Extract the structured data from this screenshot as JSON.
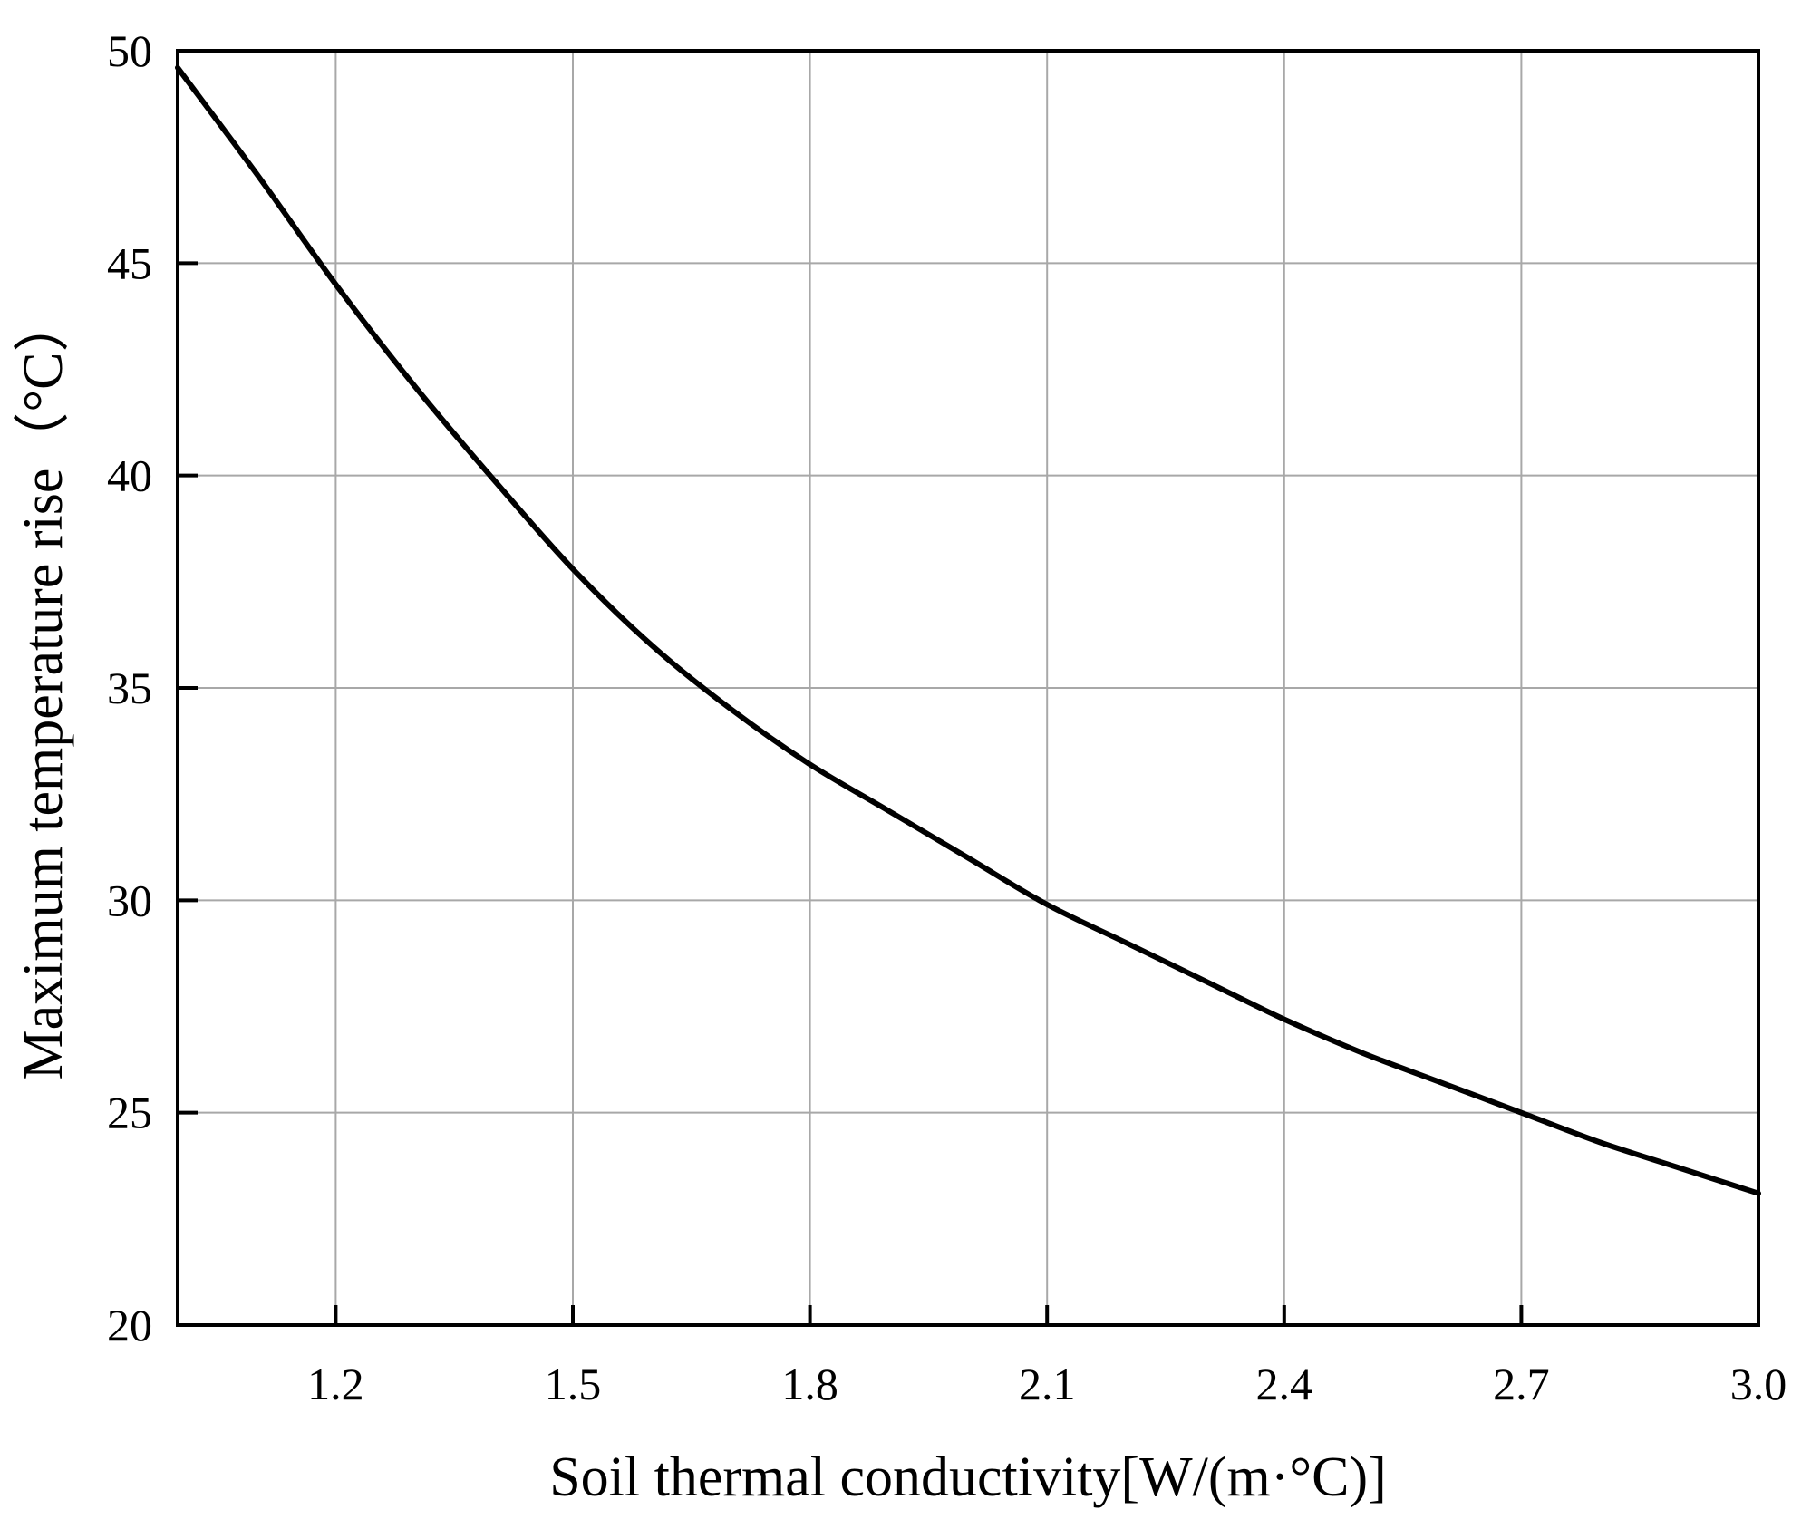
{
  "chart_data": {
    "type": "line",
    "title": "",
    "xlabel": "Soil thermal conductivity[W/(m·°C)]",
    "ylabel": "Maximum temperature rise（°C）",
    "xlim": [
      1.0,
      3.0
    ],
    "ylim": [
      20,
      50
    ],
    "xticks": [
      1.2,
      1.5,
      1.8,
      2.1,
      2.4,
      2.7,
      3.0
    ],
    "xtick_labels": [
      "1.2",
      "1.5",
      "1.8",
      "2.1",
      "2.4",
      "2.7",
      "3.0"
    ],
    "yticks": [
      20,
      25,
      30,
      35,
      40,
      45,
      50
    ],
    "ytick_labels": [
      "20",
      "25",
      "30",
      "35",
      "40",
      "45",
      "50"
    ],
    "grid": true,
    "legend": "none",
    "line_color": "#000000",
    "series": [
      {
        "x": [
          1.0,
          1.1,
          1.2,
          1.3,
          1.4,
          1.5,
          1.6,
          1.7,
          1.8,
          1.9,
          2.0,
          2.1,
          2.2,
          2.3,
          2.4,
          2.5,
          2.6,
          2.7,
          2.8,
          2.9,
          3.0
        ],
        "y": [
          49.6,
          47.1,
          44.5,
          42.1,
          39.9,
          37.8,
          36.0,
          34.5,
          33.2,
          32.1,
          31.0,
          29.9,
          29.0,
          28.1,
          27.2,
          26.4,
          25.7,
          25.0,
          24.3,
          23.7,
          23.1
        ]
      }
    ]
  }
}
